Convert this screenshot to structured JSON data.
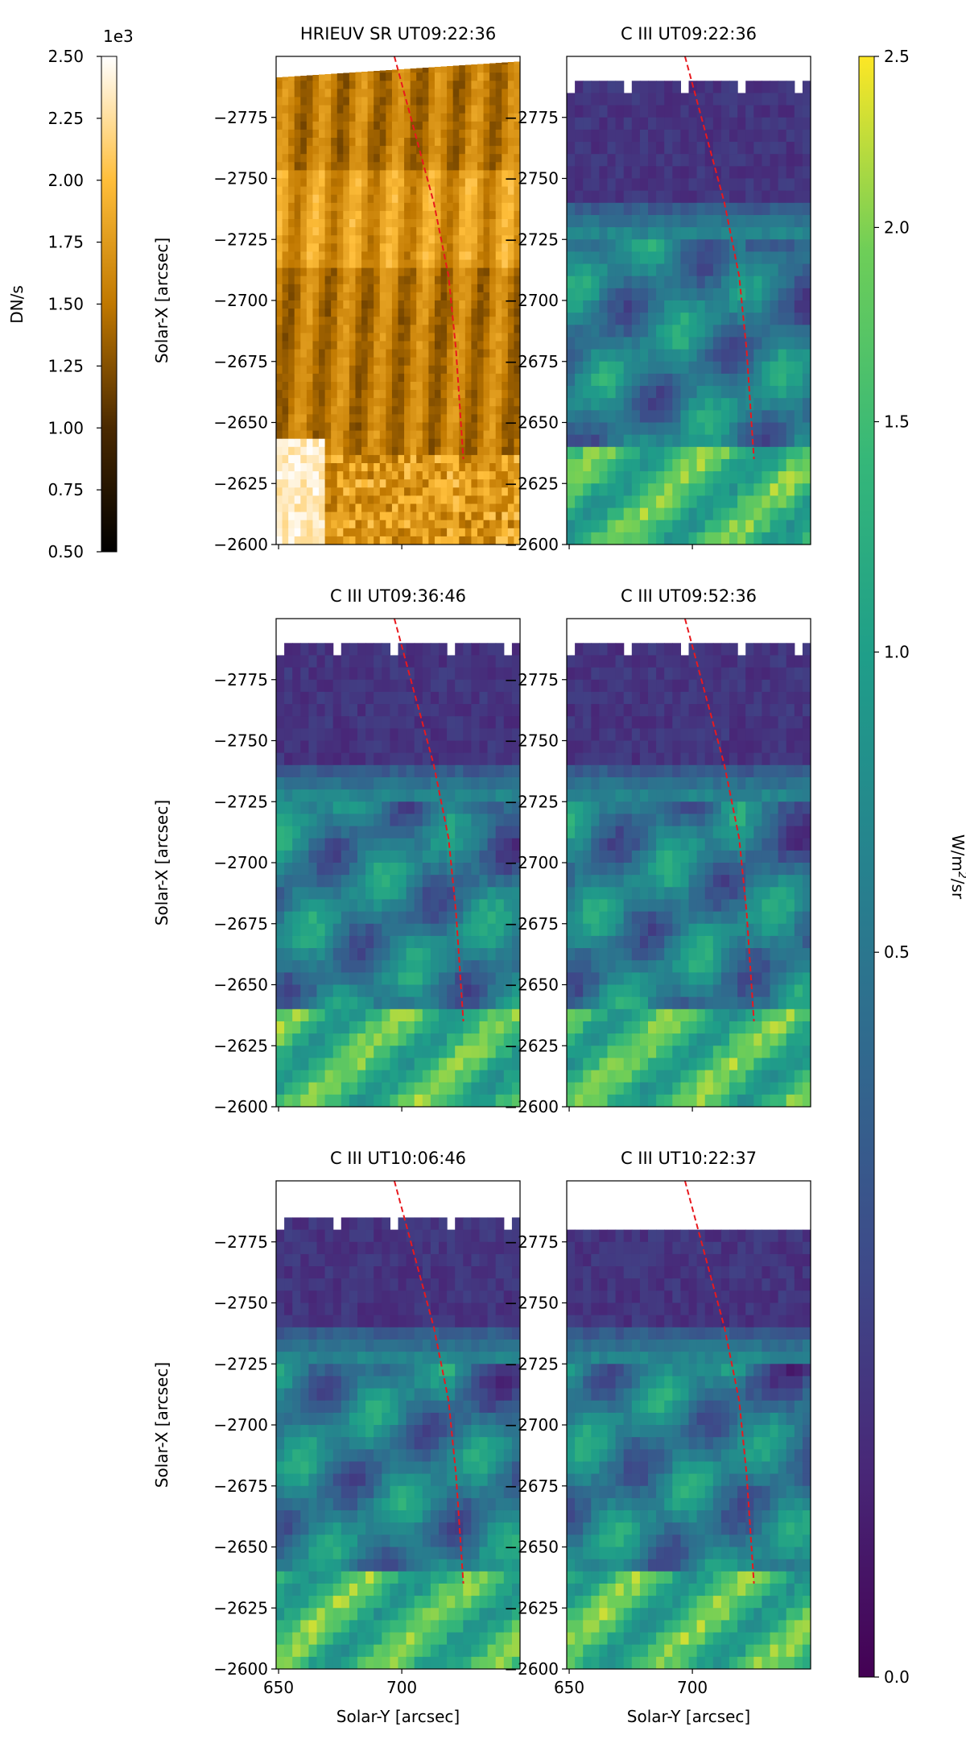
{
  "chart_data": {
    "type": "heatmap",
    "panels": [
      {
        "title": "HRIEUV SR UT09:22:36",
        "type": "heatmap",
        "colormap": "afmhot",
        "colorbar": "DN/s",
        "show_ylabel": true,
        "show_xlabel": false
      },
      {
        "title": "C III UT09:22:36",
        "type": "heatmap",
        "colormap": "viridis",
        "colorbar": "W/m²/sr",
        "show_ylabel": false,
        "show_xlabel": false
      },
      {
        "title": "C III UT09:36:46",
        "type": "heatmap",
        "colormap": "viridis",
        "colorbar": "W/m²/sr",
        "show_ylabel": true,
        "show_xlabel": false
      },
      {
        "title": "C III UT09:52:36",
        "type": "heatmap",
        "colormap": "viridis",
        "colorbar": "W/m²/sr",
        "show_ylabel": false,
        "show_xlabel": false
      },
      {
        "title": "C III UT10:06:46",
        "type": "heatmap",
        "colormap": "viridis",
        "colorbar": "W/m²/sr",
        "show_ylabel": true,
        "show_xlabel": true
      },
      {
        "title": "C III UT10:22:37",
        "type": "heatmap",
        "colormap": "viridis",
        "colorbar": "W/m²/sr",
        "show_ylabel": false,
        "show_xlabel": true
      }
    ],
    "xlabel": "Solar-Y [arcsec]",
    "ylabel": "Solar-X [arcsec]",
    "xlim": [
      649,
      748
    ],
    "ylim": [
      -2600,
      -2800
    ],
    "xticks": [
      650,
      700
    ],
    "yticks": [
      -2775,
      -2750,
      -2725,
      -2700,
      -2675,
      -2650,
      -2625,
      -2600
    ],
    "overlay_line": {
      "style": "dashed",
      "color": "#e8191e",
      "points": [
        [
          697,
          -2800
        ],
        [
          705,
          -2770
        ],
        [
          713,
          -2740
        ],
        [
          719,
          -2710
        ],
        [
          722,
          -2680
        ],
        [
          724,
          -2650
        ],
        [
          725,
          -2635
        ]
      ]
    },
    "colorbar_dn": {
      "label": "DN/s",
      "multiplier": "1e3",
      "range": [
        0.5,
        2.5
      ],
      "ticks": [
        "0.50",
        "0.75",
        "1.00",
        "1.25",
        "1.50",
        "1.75",
        "2.00",
        "2.25",
        "2.50"
      ]
    },
    "colorbar_rad": {
      "label": "W/m²/sr",
      "scale": "sqrt",
      "range": [
        0.0,
        2.5
      ],
      "ticks": [
        "0.0",
        "0.5",
        "1.0",
        "1.5",
        "2.0",
        "2.5"
      ]
    }
  }
}
